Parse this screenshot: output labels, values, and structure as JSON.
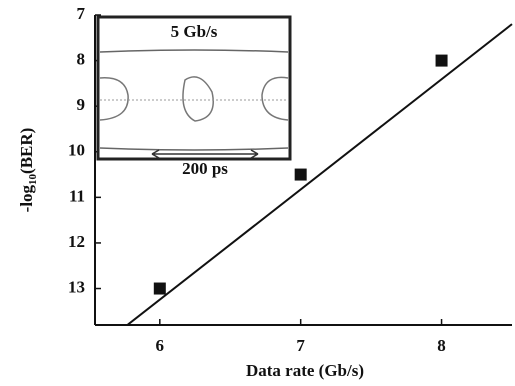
{
  "chart_data": {
    "type": "scatter",
    "xlabel": "Data rate (Gb/s)",
    "ylabel": [
      "-log",
      "10",
      "(BER)"
    ],
    "x": [
      6,
      7,
      8
    ],
    "values": [
      13,
      10.5,
      8
    ],
    "color": "#111111",
    "fit": {
      "x": [
        5.77,
        8.5
      ],
      "values": [
        13.8,
        7.2
      ],
      "color": "#111111"
    },
    "xlim": [
      5.54,
      8.5
    ],
    "xticks": [
      6,
      7,
      8
    ],
    "ylim": [
      7,
      13.8
    ],
    "yticks": [
      7,
      8,
      9,
      10,
      11,
      12,
      13
    ],
    "y_inverted": true,
    "inset": {
      "title": "5 Gb/s",
      "scale_label": "200 ps"
    }
  }
}
